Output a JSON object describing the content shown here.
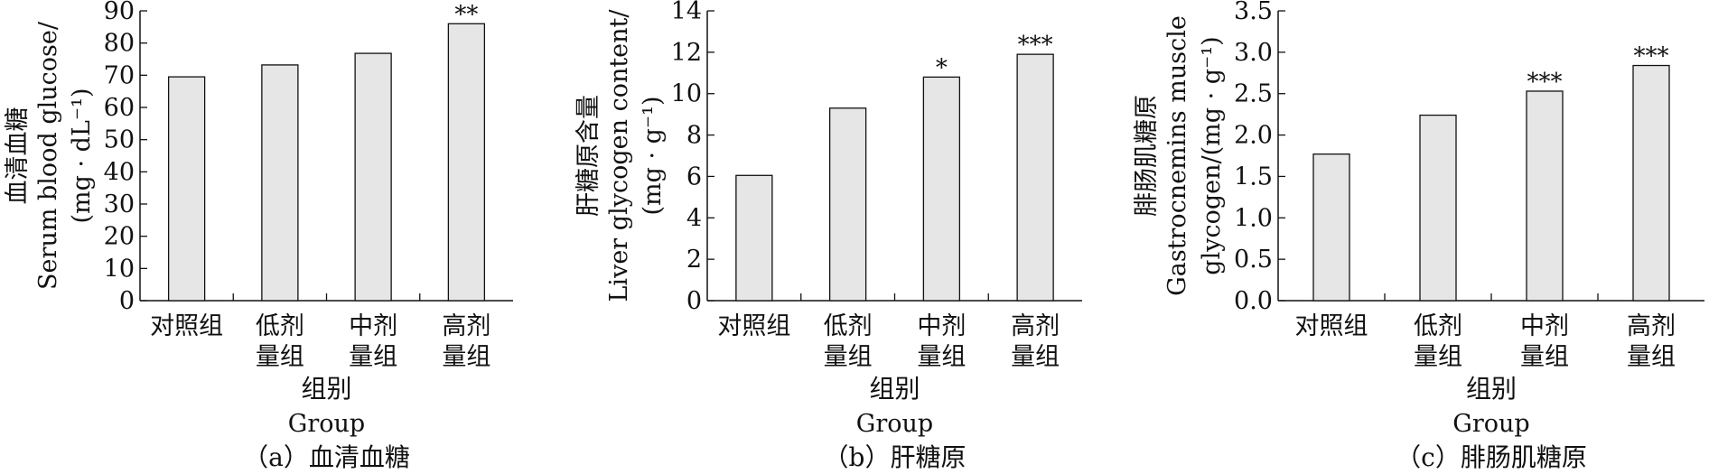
{
  "chart_data": [
    {
      "type": "bar",
      "caption": "（a）血清血糖",
      "ylabel_lines": [
        "血清血糖",
        "Serum blood glucose/",
        "(mg · dL⁻¹)"
      ],
      "xlabel_lines": [
        "组别",
        "Group"
      ],
      "categories": [
        [
          "对照组"
        ],
        [
          "低剂",
          "量组"
        ],
        [
          "中剂",
          "量组"
        ],
        [
          "高剂",
          "量组"
        ]
      ],
      "values": [
        69.5,
        73.2,
        76.8,
        86.0
      ],
      "annotations": [
        "",
        "",
        "",
        "**"
      ],
      "ylim": [
        0,
        90
      ],
      "yticks": [
        "0",
        "10",
        "20",
        "30",
        "40",
        "50",
        "60",
        "70",
        "80",
        "90"
      ],
      "grid": false,
      "bar_color": "#e6e6e6"
    },
    {
      "type": "bar",
      "caption": "（b）肝糖原",
      "ylabel_lines": [
        "肝糖原含量",
        "Liver glycogen content/",
        "(mg · g⁻¹)"
      ],
      "xlabel_lines": [
        "组别",
        "Group"
      ],
      "categories": [
        [
          "对照组"
        ],
        [
          "低剂",
          "量组"
        ],
        [
          "中剂",
          "量组"
        ],
        [
          "高剂",
          "量组"
        ]
      ],
      "values": [
        6.05,
        9.3,
        10.8,
        11.9
      ],
      "annotations": [
        "",
        "",
        "*",
        "***"
      ],
      "ylim": [
        0,
        14
      ],
      "yticks": [
        "0",
        "2",
        "4",
        "6",
        "8",
        "10",
        "12",
        "14"
      ],
      "grid": false,
      "bar_color": "#e6e6e6"
    },
    {
      "type": "bar",
      "caption": "（c）腓肠肌糖原",
      "ylabel_lines": [
        "腓肠肌糖原",
        "Gastrocnemins muscle",
        "glycogen/(mg · g⁻¹)"
      ],
      "xlabel_lines": [
        "组别",
        "Group"
      ],
      "categories": [
        [
          "对照组"
        ],
        [
          "低剂",
          "量组"
        ],
        [
          "中剂",
          "量组"
        ],
        [
          "高剂",
          "量组"
        ]
      ],
      "values": [
        1.77,
        2.24,
        2.53,
        2.84
      ],
      "annotations": [
        "",
        "",
        "***",
        "***"
      ],
      "ylim": [
        0,
        3.5
      ],
      "yticks": [
        "0.0",
        "0.5",
        "1.0",
        "1.5",
        "2.0",
        "2.5",
        "3.0",
        "3.5"
      ],
      "grid": false,
      "bar_color": "#e6e6e6"
    }
  ]
}
